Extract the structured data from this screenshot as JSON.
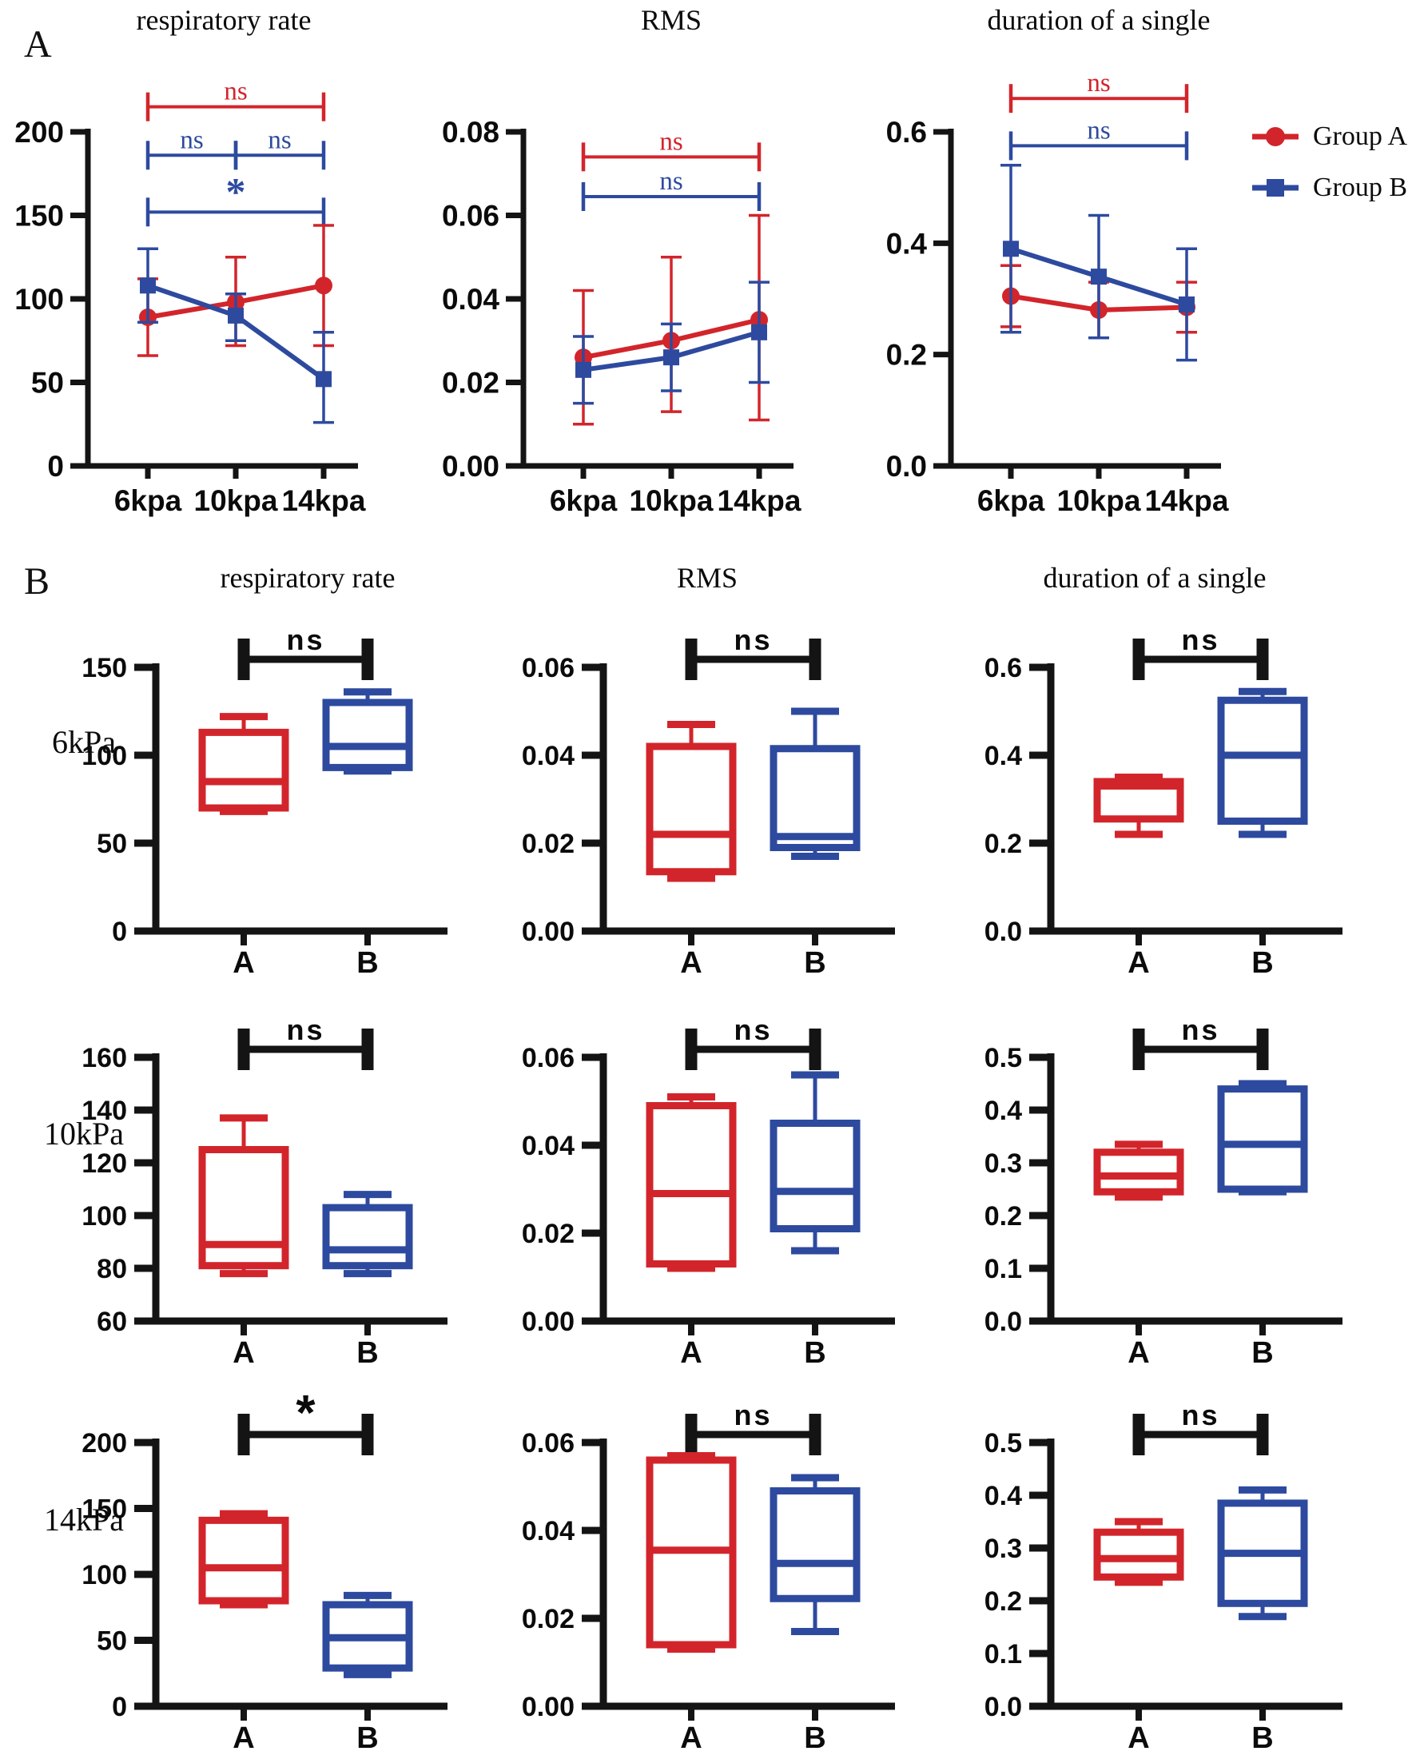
{
  "colors": {
    "group_a": "#d2252b",
    "group_b": "#2d4a9f",
    "axis": "#141414"
  },
  "panelA": {
    "label": "A",
    "legend": [
      {
        "label": "Group A",
        "color": "#d2252b",
        "marker": "circle"
      },
      {
        "label": "Group B",
        "color": "#2d4a9f",
        "marker": "square"
      }
    ]
  },
  "panelB": {
    "label": "B",
    "col_titles": [
      "respiratory rate",
      "RMS",
      "duration of a single"
    ],
    "row_labels": [
      "6kPa",
      "10kPa",
      "14kPa"
    ]
  },
  "chart_data": [
    {
      "id": "A-respiratory-rate",
      "type": "line",
      "title": "respiratory rate",
      "categories": [
        "6kpa",
        "10kpa",
        "14kpa"
      ],
      "ylim": [
        0,
        200
      ],
      "yticks": [
        0,
        50,
        100,
        150,
        200
      ],
      "ytick_labels": [
        "0",
        "50",
        "100",
        "150",
        "200"
      ],
      "series": [
        {
          "name": "Group A",
          "color": "#d2252b",
          "marker": "circle",
          "values": [
            89,
            98,
            108
          ],
          "err_lo": [
            66,
            72,
            72
          ],
          "err_hi": [
            112,
            125,
            144
          ]
        },
        {
          "name": "Group B",
          "color": "#2d4a9f",
          "marker": "square",
          "values": [
            108,
            90,
            52
          ],
          "err_lo": [
            86,
            75,
            26
          ],
          "err_hi": [
            130,
            103,
            80
          ]
        }
      ],
      "brackets": [
        {
          "from": 0,
          "to": 2,
          "y": 215,
          "label": "ns",
          "color": "#d2252b"
        },
        {
          "from": 0,
          "to": 1,
          "y": 186,
          "label": "ns",
          "color": "#2d4a9f"
        },
        {
          "from": 1,
          "to": 2,
          "y": 186,
          "label": "ns",
          "color": "#2d4a9f"
        },
        {
          "from": 0,
          "to": 2,
          "y": 152,
          "label": "*",
          "color": "#2d4a9f"
        }
      ]
    },
    {
      "id": "A-RMS",
      "type": "line",
      "title": "RMS",
      "categories": [
        "6kpa",
        "10kpa",
        "14kpa"
      ],
      "ylim": [
        0,
        0.08
      ],
      "yticks": [
        0,
        0.02,
        0.04,
        0.06,
        0.08
      ],
      "ytick_labels": [
        "0.00",
        "0.02",
        "0.04",
        "0.06",
        "0.08"
      ],
      "series": [
        {
          "name": "Group A",
          "color": "#d2252b",
          "marker": "circle",
          "values": [
            0.026,
            0.03,
            0.035
          ],
          "err_lo": [
            0.01,
            0.013,
            0.011
          ],
          "err_hi": [
            0.042,
            0.05,
            0.06
          ]
        },
        {
          "name": "Group B",
          "color": "#2d4a9f",
          "marker": "square",
          "values": [
            0.023,
            0.026,
            0.032
          ],
          "err_lo": [
            0.015,
            0.018,
            0.02
          ],
          "err_hi": [
            0.031,
            0.034,
            0.044
          ]
        }
      ],
      "brackets": [
        {
          "from": 0,
          "to": 2,
          "y": 0.074,
          "label": "ns",
          "color": "#d2252b"
        },
        {
          "from": 0,
          "to": 2,
          "y": 0.0645,
          "label": "ns",
          "color": "#2d4a9f"
        }
      ]
    },
    {
      "id": "A-duration-of-a-single",
      "type": "line",
      "title": "duration of a single",
      "categories": [
        "6kpa",
        "10kpa",
        "14kpa"
      ],
      "ylim": [
        0,
        0.6
      ],
      "yticks": [
        0,
        0.2,
        0.4,
        0.6
      ],
      "ytick_labels": [
        "0.0",
        "0.2",
        "0.4",
        "0.6"
      ],
      "series": [
        {
          "name": "Group A",
          "color": "#d2252b",
          "marker": "circle",
          "values": [
            0.305,
            0.28,
            0.285
          ],
          "err_lo": [
            0.25,
            0.23,
            0.24
          ],
          "err_hi": [
            0.36,
            0.33,
            0.33
          ]
        },
        {
          "name": "Group B",
          "color": "#2d4a9f",
          "marker": "square",
          "values": [
            0.39,
            0.34,
            0.29
          ],
          "err_lo": [
            0.24,
            0.23,
            0.19
          ],
          "err_hi": [
            0.54,
            0.45,
            0.39
          ]
        }
      ],
      "brackets": [
        {
          "from": 0,
          "to": 2,
          "y": 0.66,
          "label": "ns",
          "color": "#d2252b"
        },
        {
          "from": 0,
          "to": 2,
          "y": 0.575,
          "label": "ns",
          "color": "#2d4a9f"
        }
      ]
    },
    {
      "id": "B-6kPa-respiratory-rate",
      "type": "box",
      "row": "6kPa",
      "col": "respiratory rate",
      "categories": [
        "A",
        "B"
      ],
      "ylim": [
        0,
        150
      ],
      "yticks": [
        0,
        50,
        100,
        150
      ],
      "ytick_labels": [
        "0",
        "50",
        "100",
        "150"
      ],
      "boxes": [
        {
          "name": "A",
          "color": "#d2252b",
          "min": 68,
          "q1": 70,
          "median": 85,
          "q3": 113,
          "max": 122
        },
        {
          "name": "B",
          "color": "#2d4a9f",
          "min": 91,
          "q1": 93,
          "median": 105,
          "q3": 130,
          "max": 136
        }
      ],
      "bracket": {
        "label": "ns"
      }
    },
    {
      "id": "B-6kPa-RMS",
      "type": "box",
      "row": "6kPa",
      "col": "RMS",
      "categories": [
        "A",
        "B"
      ],
      "ylim": [
        0,
        0.06
      ],
      "yticks": [
        0,
        0.02,
        0.04,
        0.06
      ],
      "ytick_labels": [
        "0.00",
        "0.02",
        "0.04",
        "0.06"
      ],
      "boxes": [
        {
          "name": "A",
          "color": "#d2252b",
          "min": 0.012,
          "q1": 0.0135,
          "median": 0.022,
          "q3": 0.042,
          "max": 0.047
        },
        {
          "name": "B",
          "color": "#2d4a9f",
          "min": 0.017,
          "q1": 0.019,
          "median": 0.0215,
          "q3": 0.0415,
          "max": 0.05
        }
      ],
      "bracket": {
        "label": "ns"
      }
    },
    {
      "id": "B-6kPa-duration-of-a-single",
      "type": "box",
      "row": "6kPa",
      "col": "duration of a single",
      "categories": [
        "A",
        "B"
      ],
      "ylim": [
        0,
        0.6
      ],
      "yticks": [
        0,
        0.2,
        0.4,
        0.6
      ],
      "ytick_labels": [
        "0.0",
        "0.2",
        "0.4",
        "0.6"
      ],
      "boxes": [
        {
          "name": "A",
          "color": "#d2252b",
          "min": 0.22,
          "q1": 0.255,
          "median": 0.33,
          "q3": 0.34,
          "max": 0.35
        },
        {
          "name": "B",
          "color": "#2d4a9f",
          "min": 0.22,
          "q1": 0.25,
          "median": 0.4,
          "q3": 0.525,
          "max": 0.545
        }
      ],
      "bracket": {
        "label": "ns"
      }
    },
    {
      "id": "B-10kPa-respiratory-rate",
      "type": "box",
      "row": "10kPa",
      "col": "respiratory rate",
      "categories": [
        "A",
        "B"
      ],
      "ylim": [
        60,
        160
      ],
      "yticks": [
        60,
        80,
        100,
        120,
        140,
        160
      ],
      "ytick_labels": [
        "60",
        "80",
        "100",
        "120",
        "140",
        "160"
      ],
      "boxes": [
        {
          "name": "A",
          "color": "#d2252b",
          "min": 78,
          "q1": 81,
          "median": 89,
          "q3": 125,
          "max": 137
        },
        {
          "name": "B",
          "color": "#2d4a9f",
          "min": 78,
          "q1": 81,
          "median": 87,
          "q3": 103,
          "max": 108
        }
      ],
      "bracket": {
        "label": "ns"
      }
    },
    {
      "id": "B-10kPa-RMS",
      "type": "box",
      "row": "10kPa",
      "col": "RMS",
      "categories": [
        "A",
        "B"
      ],
      "ylim": [
        0,
        0.06
      ],
      "yticks": [
        0,
        0.02,
        0.04,
        0.06
      ],
      "ytick_labels": [
        "0.00",
        "0.02",
        "0.04",
        "0.06"
      ],
      "boxes": [
        {
          "name": "A",
          "color": "#d2252b",
          "min": 0.012,
          "q1": 0.013,
          "median": 0.029,
          "q3": 0.049,
          "max": 0.051
        },
        {
          "name": "B",
          "color": "#2d4a9f",
          "min": 0.016,
          "q1": 0.021,
          "median": 0.0295,
          "q3": 0.045,
          "max": 0.056
        }
      ],
      "bracket": {
        "label": "ns"
      }
    },
    {
      "id": "B-10kPa-duration-of-a-single",
      "type": "box",
      "row": "10kPa",
      "col": "duration of a single",
      "categories": [
        "A",
        "B"
      ],
      "ylim": [
        0,
        0.5
      ],
      "yticks": [
        0,
        0.1,
        0.2,
        0.3,
        0.4,
        0.5
      ],
      "ytick_labels": [
        "0.0",
        "0.1",
        "0.2",
        "0.3",
        "0.4",
        "0.5"
      ],
      "boxes": [
        {
          "name": "A",
          "color": "#d2252b",
          "min": 0.235,
          "q1": 0.245,
          "median": 0.275,
          "q3": 0.32,
          "max": 0.335
        },
        {
          "name": "B",
          "color": "#2d4a9f",
          "min": 0.245,
          "q1": 0.25,
          "median": 0.335,
          "q3": 0.44,
          "max": 0.45
        }
      ],
      "bracket": {
        "label": "ns"
      }
    },
    {
      "id": "B-14kPa-respiratory-rate",
      "type": "box",
      "row": "14kPa",
      "col": "respiratory rate",
      "categories": [
        "A",
        "B"
      ],
      "ylim": [
        0,
        200
      ],
      "yticks": [
        0,
        50,
        100,
        150,
        200
      ],
      "ytick_labels": [
        "0",
        "50",
        "100",
        "150",
        "200"
      ],
      "boxes": [
        {
          "name": "A",
          "color": "#d2252b",
          "min": 77,
          "q1": 80,
          "median": 105,
          "q3": 141,
          "max": 146
        },
        {
          "name": "B",
          "color": "#2d4a9f",
          "min": 24,
          "q1": 29,
          "median": 52,
          "q3": 77,
          "max": 84
        }
      ],
      "bracket": {
        "label": "*"
      }
    },
    {
      "id": "B-14kPa-RMS",
      "type": "box",
      "row": "14kPa",
      "col": "RMS",
      "categories": [
        "A",
        "B"
      ],
      "ylim": [
        0,
        0.06
      ],
      "yticks": [
        0,
        0.02,
        0.04,
        0.06
      ],
      "ytick_labels": [
        "0.00",
        "0.02",
        "0.04",
        "0.06"
      ],
      "boxes": [
        {
          "name": "A",
          "color": "#d2252b",
          "min": 0.013,
          "q1": 0.014,
          "median": 0.0355,
          "q3": 0.056,
          "max": 0.057
        },
        {
          "name": "B",
          "color": "#2d4a9f",
          "min": 0.017,
          "q1": 0.0245,
          "median": 0.0325,
          "q3": 0.049,
          "max": 0.052
        }
      ],
      "bracket": {
        "label": "ns"
      }
    },
    {
      "id": "B-14kPa-duration-of-a-single",
      "type": "box",
      "row": "14kPa",
      "col": "duration of a single",
      "categories": [
        "A",
        "B"
      ],
      "ylim": [
        0,
        0.5
      ],
      "yticks": [
        0,
        0.1,
        0.2,
        0.3,
        0.4,
        0.5
      ],
      "ytick_labels": [
        "0.0",
        "0.1",
        "0.2",
        "0.3",
        "0.4",
        "0.5"
      ],
      "boxes": [
        {
          "name": "A",
          "color": "#d2252b",
          "min": 0.235,
          "q1": 0.245,
          "median": 0.28,
          "q3": 0.33,
          "max": 0.35
        },
        {
          "name": "B",
          "color": "#2d4a9f",
          "min": 0.17,
          "q1": 0.195,
          "median": 0.29,
          "q3": 0.385,
          "max": 0.41
        }
      ],
      "bracket": {
        "label": "ns"
      }
    }
  ]
}
